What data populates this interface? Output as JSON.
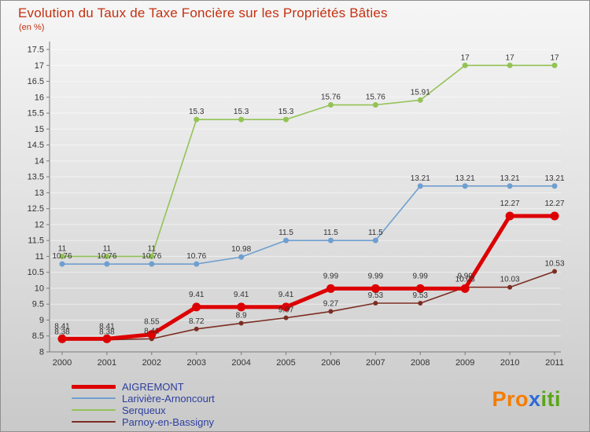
{
  "title": "Evolution du Taux de Taxe Foncière sur les Propriétés Bâties",
  "subtitle": "(en %)",
  "colors": {
    "title": "#c53010",
    "axis_line": "#7a7a7a",
    "axis_text": "#333333",
    "grid_line": "#ffffff",
    "value_label": "#333333",
    "legend_text": "#2c3e9e"
  },
  "chart_data": {
    "type": "line",
    "x": [
      "2000",
      "2001",
      "2002",
      "2003",
      "2004",
      "2005",
      "2006",
      "2007",
      "2008",
      "2009",
      "2010",
      "2011"
    ],
    "ylim": [
      8,
      17.5
    ],
    "ytick_step": 0.5,
    "grid": true,
    "legend_position": "bottom-left",
    "title": "Evolution du Taux de Taxe Foncière sur les Propriétés Bâties",
    "xlabel": "",
    "ylabel": "en %",
    "series": [
      {
        "name": "Serqueux",
        "color": "#93c356",
        "line_width": 1.6,
        "marker_radius": 3.5,
        "label_dy": -7,
        "values": [
          11,
          11,
          11,
          15.3,
          15.3,
          15.3,
          15.76,
          15.76,
          15.91,
          17,
          17,
          17
        ]
      },
      {
        "name": "Larivière-Arnoncourt",
        "color": "#6f9fd0",
        "line_width": 1.6,
        "marker_radius": 3.5,
        "label_dy": -7,
        "values": [
          10.76,
          10.76,
          10.76,
          10.76,
          10.98,
          11.5,
          11.5,
          11.5,
          13.21,
          13.21,
          13.21,
          13.21
        ]
      },
      {
        "name": "Parnoy-en-Bassigny",
        "color": "#7c2d22",
        "line_width": 1.6,
        "marker_radius": 3,
        "label_dy": -7,
        "values": [
          8.38,
          8.38,
          8.41,
          8.72,
          8.9,
          9.07,
          9.27,
          9.53,
          9.53,
          10.03,
          10.03,
          10.53
        ]
      },
      {
        "name": "AIGREMONT",
        "color": "#dd0000",
        "line_width": 5,
        "marker_radius": 5.5,
        "label_dy": -13,
        "values": [
          8.41,
          8.41,
          8.55,
          9.41,
          9.41,
          9.41,
          9.99,
          9.99,
          9.99,
          9.99,
          12.27,
          12.27
        ]
      }
    ],
    "legend_order": [
      3,
      1,
      0,
      2
    ]
  },
  "logo": {
    "parts": [
      {
        "text": "Pro",
        "color": "#f57c00"
      },
      {
        "text": "x",
        "color": "#2f6bd8"
      },
      {
        "text": "iti",
        "color": "#58a618"
      }
    ]
  }
}
